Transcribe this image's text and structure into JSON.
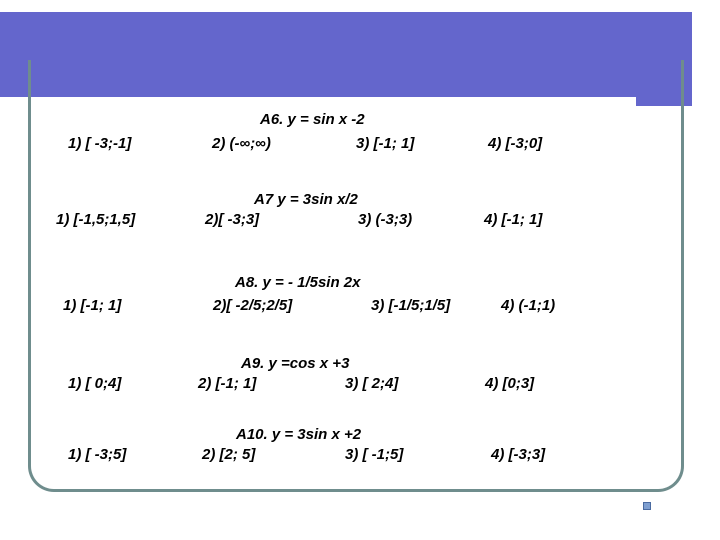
{
  "questions": [
    {
      "title": "A6. y = sin x -2",
      "options": [
        "1)  [ -3;-1]",
        "2) (-∞;∞)",
        "3) [-1; 1]",
        "4) [-3;0]"
      ]
    },
    {
      "title": "A7 y = 3sin x/2",
      "options": [
        "1)   [-1,5;1,5]",
        "2)[ -3;3]",
        "3) (-3;3)",
        "4) [-1; 1]"
      ]
    },
    {
      "title": "A8. y = - 1/5sin 2x",
      "options": [
        "1) [-1; 1]",
        "2)[ -2/5;2/5]",
        "3) [-1/5;1/5]",
        "4) (-1;1)"
      ]
    },
    {
      "title": "A9. y =cos x +3",
      "options": [
        "1) [ 0;4]",
        "2) [-1; 1]",
        "3) [ 2;4]",
        "4) [0;3]"
      ]
    },
    {
      "title": "A10. y = 3sin x +2",
      "options": [
        "1) [ -3;5]",
        "2) [2; 5]",
        "3) [ -1;5]",
        "4) [-3;3]"
      ]
    }
  ],
  "colors": {
    "header": "#6466cc",
    "frame": "#6f8d8d"
  },
  "icons": {
    "slide_nav": "slide-navigation-icon"
  }
}
